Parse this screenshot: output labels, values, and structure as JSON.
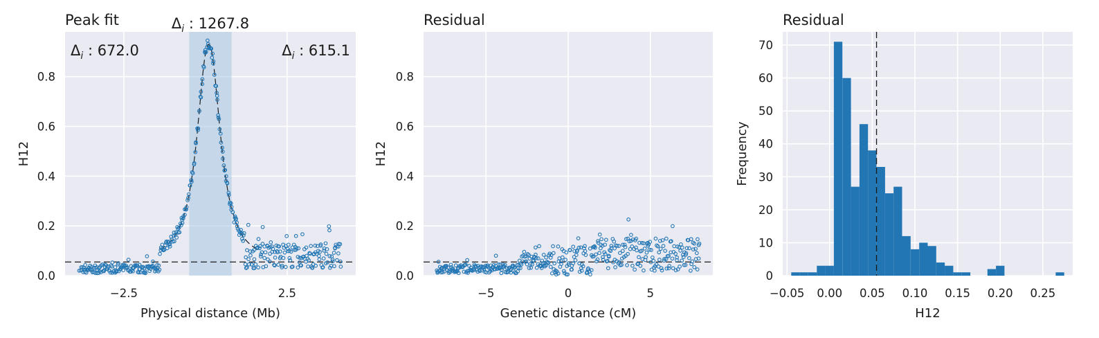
{
  "colors": {
    "background": "#ffffff",
    "panel": "#eaeaf2",
    "grid": "#ffffff",
    "marker": "#2276b4",
    "bar": "#2276b4",
    "band": "#a8c6e4",
    "dash": "#1a1a1a"
  },
  "chart_data": [
    {
      "type": "scatter",
      "title": "Peak fit",
      "xlabel": "Physical distance (Mb)",
      "ylabel": "H12",
      "xlim": [
        -4.3,
        4.6
      ],
      "ylim": [
        0,
        0.98
      ],
      "xticks": [
        -2.5,
        2.5
      ],
      "xtick_labels": [
        "−2.5",
        "2.5"
      ],
      "yticks": [
        0.0,
        0.2,
        0.4,
        0.6,
        0.8
      ],
      "ytick_labels": [
        "0.0",
        "0.2",
        "0.4",
        "0.6",
        "0.8"
      ],
      "baseline": 0.055,
      "peak_height": 0.93,
      "peak_center": 0.1,
      "highlight_range": [
        -0.5,
        0.8
      ],
      "annotations": [
        {
          "text": "Δ",
          "sub": "i",
          "value": " : 672.0",
          "position": "top-left"
        },
        {
          "text": "Δ",
          "sub": "i",
          "value": " : 1267.8",
          "position": "top-center"
        },
        {
          "text": "Δ",
          "sub": "i",
          "value": " : 615.1",
          "position": "top-right"
        }
      ],
      "n_points": 420,
      "grid": true,
      "fit_line": "dashed"
    },
    {
      "type": "scatter",
      "title": "Residual",
      "xlabel": "Genetic distance (cM)",
      "ylabel": "H12",
      "xlim": [
        -8.8,
        8.8
      ],
      "ylim": [
        0,
        0.98
      ],
      "xticks": [
        -5,
        0,
        5
      ],
      "xtick_labels": [
        "−5",
        "0",
        "5"
      ],
      "yticks": [
        0.0,
        0.2,
        0.4,
        0.6,
        0.8
      ],
      "ytick_labels": [
        "0.0",
        "0.2",
        "0.4",
        "0.6",
        "0.8"
      ],
      "baseline": 0.055,
      "n_points": 420,
      "grid": true
    },
    {
      "type": "bar",
      "title": "Residual",
      "xlabel": "H12",
      "ylabel": "Frequency",
      "xlim": [
        -0.055,
        0.285
      ],
      "ylim": [
        0,
        74
      ],
      "xticks": [
        -0.05,
        0.0,
        0.05,
        0.1,
        0.15,
        0.2,
        0.25
      ],
      "xtick_labels": [
        "−0.05",
        "0.00",
        "0.05",
        "0.10",
        "0.15",
        "0.20",
        "0.25"
      ],
      "yticks": [
        0,
        10,
        20,
        30,
        40,
        50,
        60,
        70
      ],
      "ytick_labels": [
        "0",
        "10",
        "20",
        "30",
        "40",
        "50",
        "60",
        "70"
      ],
      "bin_start": -0.045,
      "bin_width": 0.01,
      "values": [
        1,
        1,
        1,
        3,
        3,
        71,
        60,
        27,
        46,
        38,
        33,
        25,
        27,
        12,
        8,
        10,
        9,
        4,
        3,
        1,
        1,
        0,
        0,
        2,
        3,
        0,
        0,
        0,
        0,
        0,
        0,
        1
      ],
      "vline": 0.055,
      "grid": true
    }
  ]
}
